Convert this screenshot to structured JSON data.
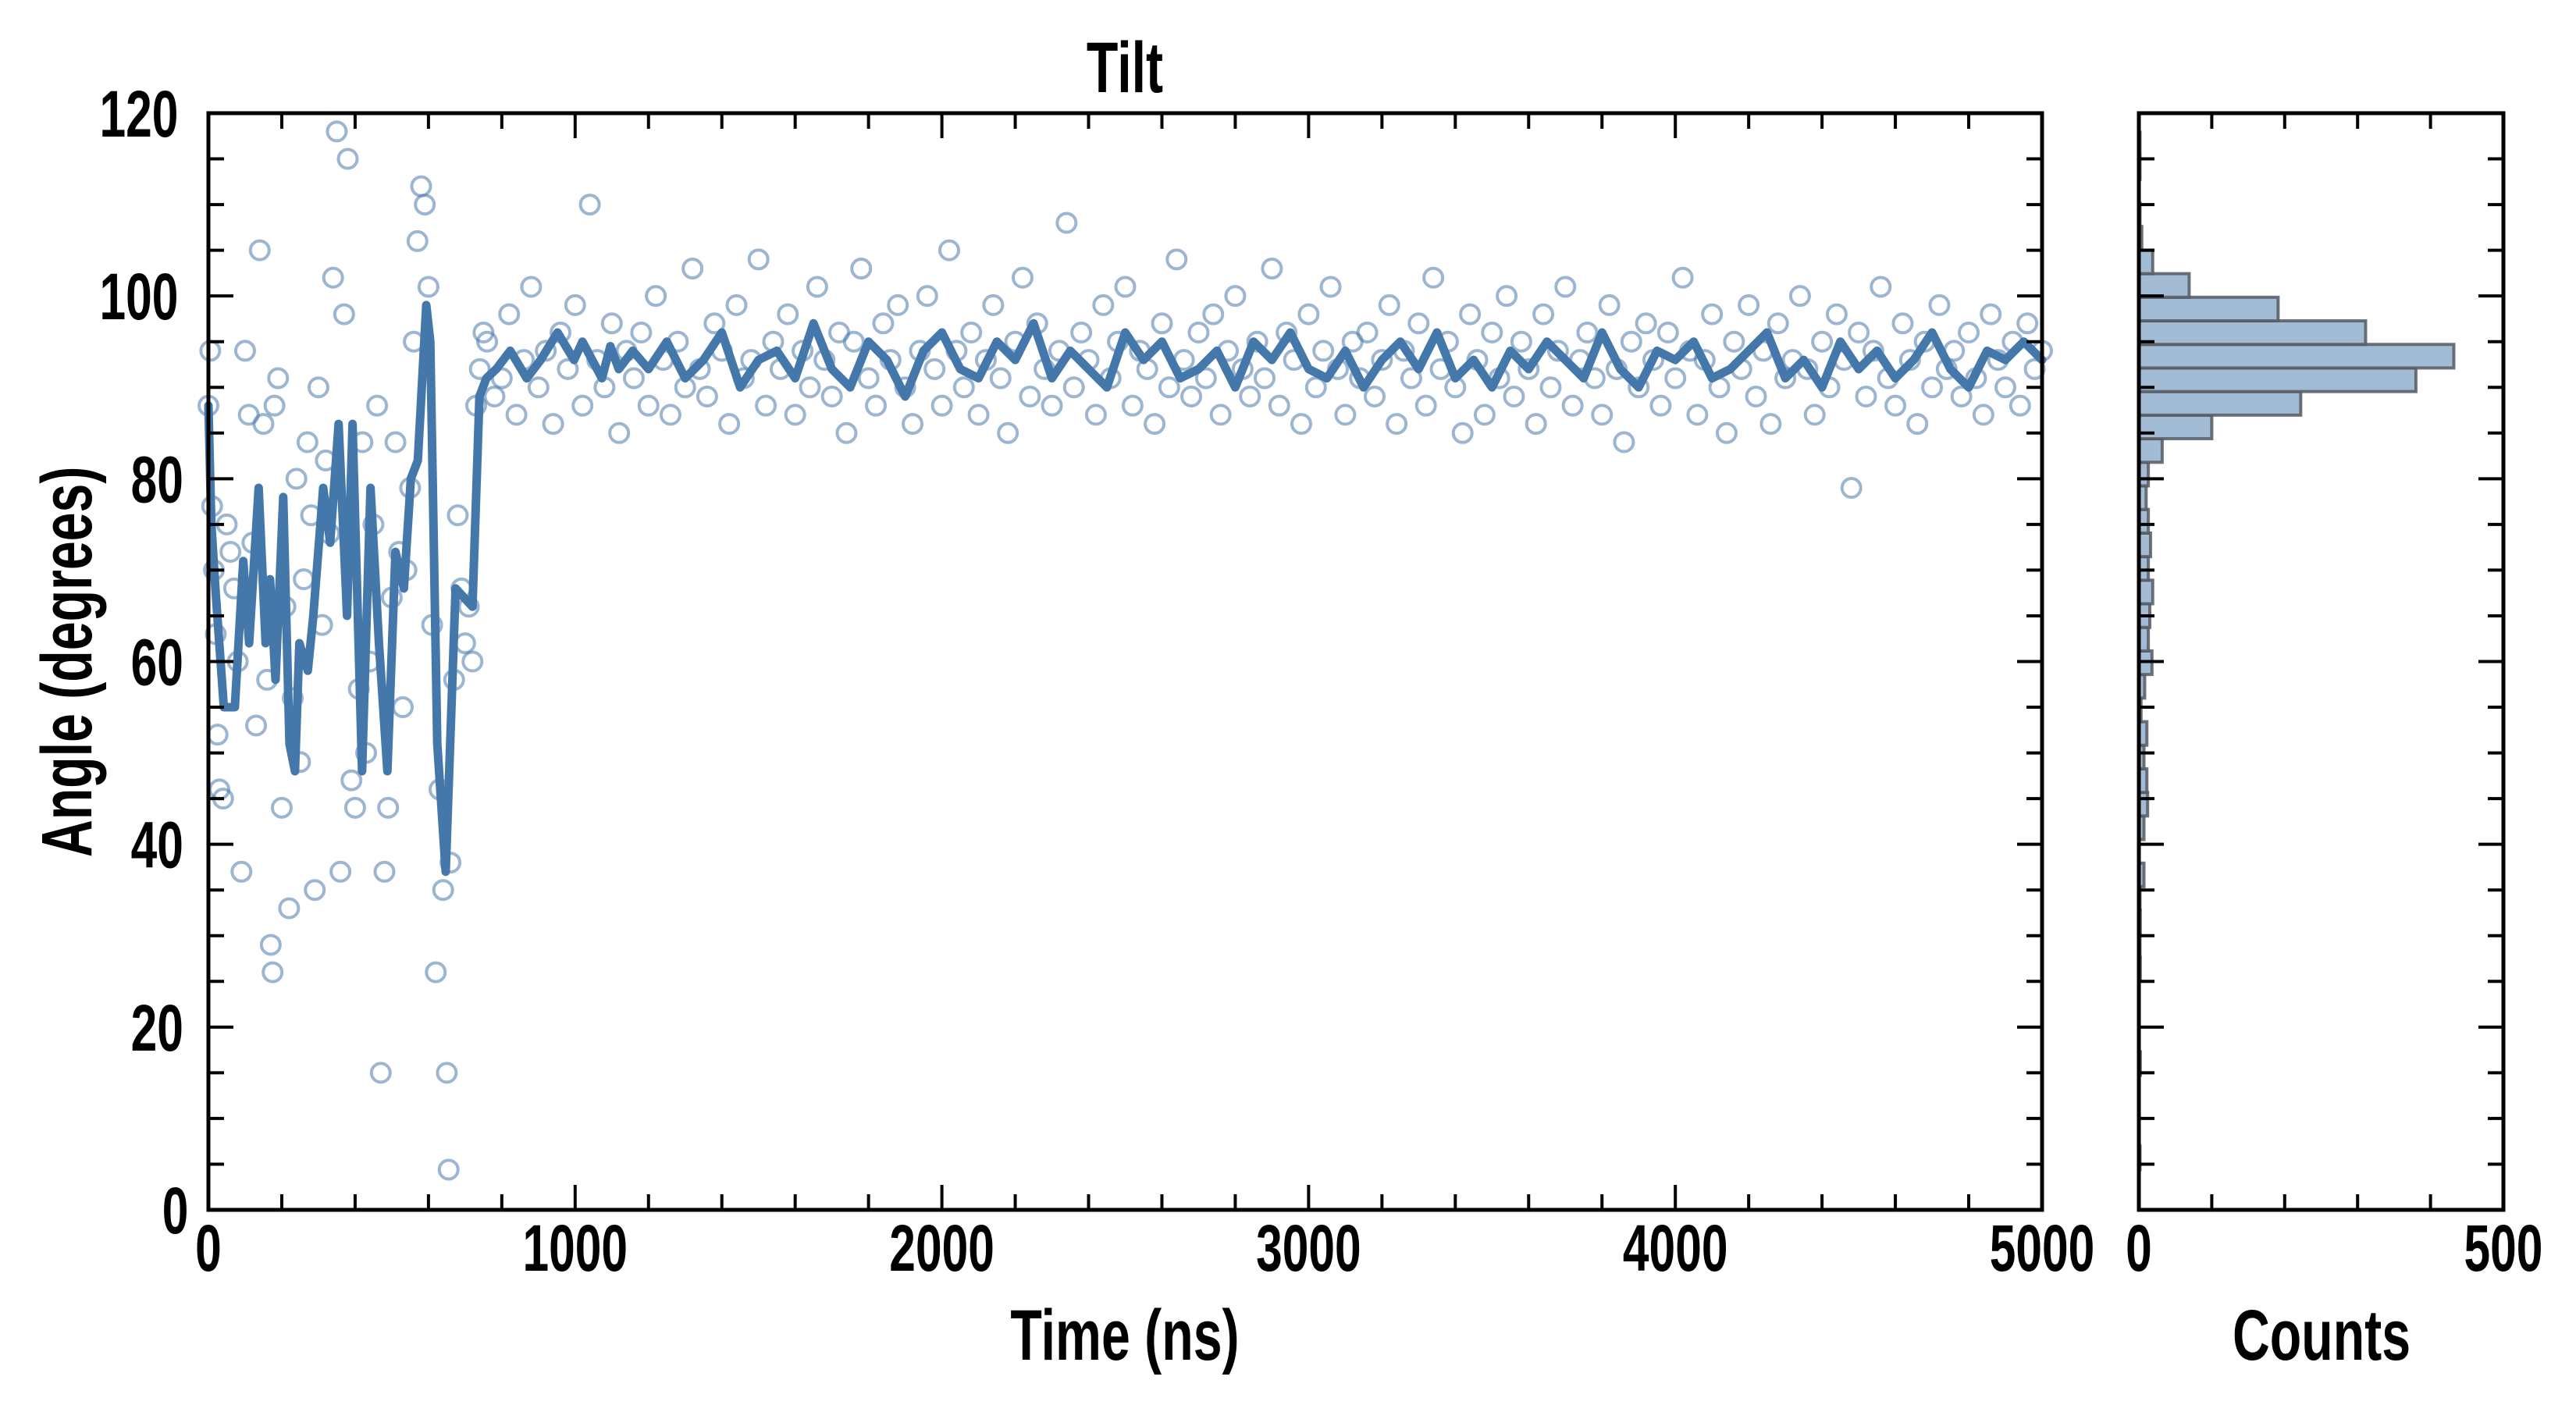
{
  "chart_data": [
    {
      "type": "scatter",
      "title": "Tilt",
      "xlabel": "Time (ns)",
      "ylabel": "Angle (degrees)",
      "xlim": [
        0,
        5000
      ],
      "ylim": [
        0,
        120
      ],
      "xticks": [
        "0",
        "1000",
        "2000",
        "3000",
        "4000",
        "5000"
      ],
      "yticks": [
        "0",
        "20",
        "40",
        "60",
        "80",
        "100",
        "120"
      ],
      "grid": false,
      "marker_color": "#4a7aad",
      "line_color": "#4477aa",
      "scatter_early": [
        [
          0,
          88
        ],
        [
          5,
          94
        ],
        [
          10,
          77
        ],
        [
          15,
          70
        ],
        [
          20,
          63
        ],
        [
          25,
          52
        ],
        [
          30,
          46
        ],
        [
          40,
          45
        ],
        [
          50,
          75
        ],
        [
          60,
          72
        ],
        [
          70,
          68
        ],
        [
          80,
          60
        ],
        [
          90,
          37
        ],
        [
          100,
          94
        ],
        [
          110,
          87
        ],
        [
          120,
          73
        ],
        [
          130,
          53
        ],
        [
          140,
          105
        ],
        [
          150,
          86
        ],
        [
          160,
          58
        ],
        [
          170,
          29
        ],
        [
          175,
          26
        ],
        [
          180,
          88
        ],
        [
          190,
          91
        ],
        [
          200,
          44
        ],
        [
          210,
          66
        ],
        [
          220,
          33
        ],
        [
          230,
          56
        ],
        [
          240,
          80
        ],
        [
          250,
          49
        ],
        [
          260,
          69
        ],
        [
          270,
          84
        ],
        [
          280,
          76
        ],
        [
          290,
          35
        ],
        [
          300,
          90
        ],
        [
          310,
          64
        ],
        [
          320,
          82
        ],
        [
          330,
          74
        ],
        [
          340,
          102
        ],
        [
          350,
          118
        ],
        [
          360,
          37
        ],
        [
          370,
          98
        ],
        [
          380,
          115
        ],
        [
          390,
          47
        ],
        [
          400,
          44
        ],
        [
          410,
          57
        ],
        [
          420,
          84
        ],
        [
          430,
          50
        ],
        [
          440,
          60
        ],
        [
          450,
          75
        ],
        [
          460,
          88
        ],
        [
          470,
          15
        ],
        [
          480,
          37
        ],
        [
          490,
          44
        ],
        [
          500,
          67
        ],
        [
          510,
          84
        ],
        [
          520,
          72
        ],
        [
          530,
          55
        ],
        [
          540,
          70
        ],
        [
          550,
          79
        ],
        [
          560,
          95
        ],
        [
          570,
          106
        ],
        [
          580,
          112
        ],
        [
          590,
          110
        ],
        [
          600,
          101
        ],
        [
          610,
          64
        ],
        [
          620,
          26
        ],
        [
          630,
          46
        ],
        [
          640,
          35
        ],
        [
          650,
          15
        ],
        [
          655,
          4.4
        ],
        [
          660,
          38
        ],
        [
          670,
          58
        ],
        [
          680,
          76
        ],
        [
          690,
          68
        ],
        [
          700,
          62
        ],
        [
          710,
          66
        ],
        [
          720,
          60
        ],
        [
          730,
          88
        ],
        [
          740,
          92
        ],
        [
          750,
          96
        ]
      ],
      "scatter_stable": {
        "t0": 760,
        "dt": 20,
        "values": [
          95,
          89,
          91,
          98,
          87,
          93,
          101,
          90,
          94,
          86,
          96,
          92,
          99,
          88,
          110,
          93,
          90,
          97,
          85,
          94,
          91,
          96,
          88,
          100,
          93,
          87,
          95,
          90,
          103,
          92,
          89,
          97,
          94,
          86,
          99,
          91,
          93,
          104,
          88,
          95,
          92,
          98,
          87,
          94,
          90,
          101,
          93,
          89,
          96,
          85,
          95,
          103,
          91,
          88,
          97,
          93,
          99,
          90,
          86,
          94,
          100,
          92,
          88,
          105,
          94,
          90,
          96,
          87,
          93,
          99,
          91,
          85,
          95,
          102,
          89,
          97,
          92,
          88,
          94,
          108,
          90,
          96,
          93,
          87,
          99,
          91,
          95,
          101,
          88,
          94,
          92,
          86,
          97,
          90,
          104,
          93,
          89,
          96,
          91,
          98,
          87,
          94,
          100,
          92,
          89,
          95,
          91,
          103,
          88,
          96,
          93,
          86,
          98,
          90,
          94,
          101,
          92,
          87,
          95,
          91,
          96,
          89,
          93,
          99,
          86,
          94,
          91,
          97,
          88,
          102,
          92,
          95,
          90,
          85,
          98,
          93,
          87,
          96,
          91,
          100,
          89,
          95,
          92,
          86,
          98,
          90,
          94,
          101,
          88,
          93,
          96,
          91,
          87,
          99,
          92,
          84,
          95,
          90,
          97,
          93,
          88,
          96,
          91,
          102,
          94,
          87,
          93,
          98,
          90,
          85,
          95,
          92,
          99,
          89,
          94,
          86,
          97,
          91,
          93,
          100,
          92,
          87,
          95,
          90,
          98,
          93,
          79,
          96,
          89,
          94,
          101,
          91,
          88,
          97,
          93,
          86,
          95,
          90,
          99,
          92,
          94,
          89,
          96,
          91,
          87,
          98,
          93,
          90,
          95,
          88,
          97,
          92,
          94
        ]
      },
      "running_average_early": [
        [
          0,
          88
        ],
        [
          8,
          75
        ],
        [
          19,
          68
        ],
        [
          42,
          55
        ],
        [
          72,
          55
        ],
        [
          95,
          71
        ],
        [
          111,
          62
        ],
        [
          137,
          79
        ],
        [
          156,
          62
        ],
        [
          168,
          69
        ],
        [
          183,
          58
        ],
        [
          204,
          78
        ],
        [
          221,
          51
        ],
        [
          236,
          48
        ],
        [
          248,
          62
        ],
        [
          271,
          59
        ],
        [
          286,
          65
        ],
        [
          313,
          79
        ],
        [
          332,
          73
        ],
        [
          355,
          86
        ],
        [
          378,
          65
        ],
        [
          393,
          86
        ],
        [
          419,
          48
        ],
        [
          442,
          79
        ],
        [
          465,
          62
        ],
        [
          488,
          48
        ],
        [
          510,
          72
        ],
        [
          533,
          68
        ],
        [
          552,
          80
        ],
        [
          571,
          82
        ],
        [
          594,
          99
        ],
        [
          605,
          95
        ],
        [
          624,
          51
        ],
        [
          647,
          37
        ],
        [
          674,
          68
        ],
        [
          720,
          66
        ],
        [
          739,
          89
        ],
        [
          758,
          91
        ],
        [
          785,
          92
        ],
        [
          823,
          94
        ],
        [
          868,
          91
        ],
        [
          906,
          93
        ],
        [
          952,
          96
        ],
        [
          997,
          93
        ],
        [
          1020,
          95
        ],
        [
          1073,
          91
        ],
        [
          1096,
          94.5
        ],
        [
          1119,
          92
        ],
        [
          1157,
          94
        ]
      ],
      "running_average_stable": {
        "t0": 1200,
        "dt": 50,
        "values": [
          92,
          95,
          91,
          93,
          96,
          90,
          93,
          94,
          91,
          97,
          92,
          90,
          95,
          93,
          89,
          94,
          96,
          92,
          91,
          95,
          93,
          97,
          91,
          94,
          92,
          90,
          96,
          93,
          95,
          91,
          92,
          94,
          90,
          95,
          93,
          96,
          92,
          91,
          94,
          90,
          93,
          95,
          92,
          96,
          91,
          93,
          90,
          94,
          92,
          95,
          93,
          91,
          96,
          92,
          90,
          94,
          93,
          95,
          91,
          92,
          94,
          96,
          91,
          93,
          90,
          95,
          92,
          94,
          91,
          93,
          96,
          92,
          90,
          94,
          93,
          95,
          93
        ]
      }
    },
    {
      "type": "bar",
      "orientation": "horizontal",
      "xlabel": "Counts",
      "xlim": [
        0,
        500
      ],
      "xticks": [
        "0",
        "500"
      ],
      "ylim": [
        0,
        120
      ],
      "bin_start": 4.4,
      "bin_width": 2.58,
      "counts": [
        1,
        0,
        0,
        0,
        2,
        0,
        0,
        0,
        2,
        1,
        2,
        1,
        7,
        0,
        7,
        12,
        11,
        7,
        11,
        3,
        8,
        18,
        13,
        15,
        19,
        13,
        16,
        13,
        10,
        13,
        32,
        100,
        222,
        380,
        432,
        311,
        191,
        69,
        19,
        4,
        1,
        0,
        1,
        1
      ],
      "fill_color": "#a3bcd6",
      "edge_color": "#555b63"
    }
  ]
}
